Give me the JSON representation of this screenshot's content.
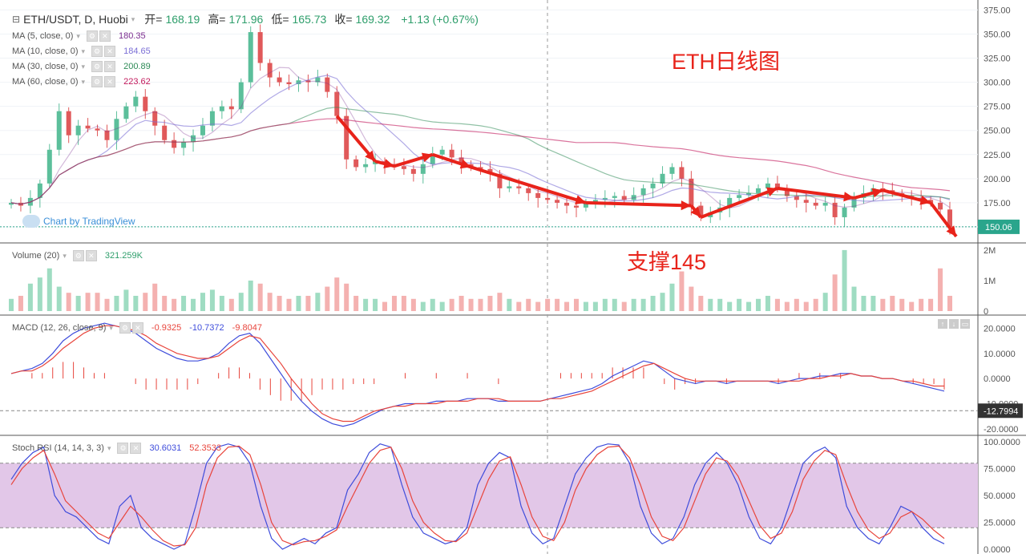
{
  "header": {
    "symbol": "ETH/USDT, D, Huobi",
    "open_label": "开=",
    "open": "168.19",
    "high_label": "高=",
    "high": "171.96",
    "low_label": "低=",
    "low": "165.73",
    "close_label": "收=",
    "close": "169.32",
    "change": "+1.13 (+0.67%)"
  },
  "ma_legend": [
    {
      "label": "MA (5, close, 0)",
      "value": "180.35",
      "color": "#7b2d8f"
    },
    {
      "label": "MA (10, close, 0)",
      "value": "184.65",
      "color": "#7b6fd6"
    },
    {
      "label": "MA (30, close, 0)",
      "value": "200.89",
      "color": "#2e8b57"
    },
    {
      "label": "MA (60, close, 0)",
      "value": "223.62",
      "color": "#c2185b"
    }
  ],
  "volume_legend": {
    "label": "Volume (20)",
    "value": "321.259K"
  },
  "macd_legend": {
    "label": "MACD (12, 26, close, 9)",
    "v1": "-0.9325",
    "v2": "-10.7372",
    "v3": "-9.8047"
  },
  "stoch_legend": {
    "label": "Stoch RSI (14, 14, 3, 3)",
    "v1": "30.6031",
    "v2": "52.3533"
  },
  "watermark": "Chart by TradingView",
  "annotations": {
    "title": "ETH日线图",
    "support": "支撑145"
  },
  "price_axis": {
    "ticks": [
      "375.00",
      "350.00",
      "325.00",
      "300.00",
      "275.00",
      "250.00",
      "225.00",
      "200.00",
      "175.00",
      "150.00"
    ],
    "last_price_tag": "150.06"
  },
  "volume_axis": {
    "ticks": [
      "2M",
      "1M",
      "0"
    ]
  },
  "macd_axis": {
    "ticks": [
      "20.0000",
      "10.0000",
      "0.0000",
      "-10.0000",
      "-20.0000"
    ],
    "tag": "-12.7994"
  },
  "stoch_axis": {
    "ticks": [
      "100.0000",
      "75.0000",
      "50.0000",
      "25.0000",
      "0.0000"
    ]
  },
  "colors": {
    "up": "#5cbf9b",
    "down": "#e0595a",
    "arrow": "#e8231a",
    "macd_line": "#3f4ddb",
    "signal_line": "#e8453c",
    "stoch_k": "#3f4ddb",
    "stoch_d": "#e8453c",
    "stoch_band": "#e2c7e8"
  },
  "chart_data": {
    "type": "candlestick",
    "closes": [
      175,
      172,
      180,
      195,
      230,
      270,
      245,
      255,
      252,
      250,
      240,
      262,
      275,
      285,
      270,
      255,
      240,
      232,
      238,
      245,
      255,
      270,
      275,
      272,
      300,
      352,
      320,
      305,
      300,
      298,
      302,
      300,
      305,
      290,
      265,
      220,
      212,
      215,
      218,
      215,
      213,
      210,
      205,
      215,
      225,
      230,
      222,
      215,
      212,
      210,
      205,
      190,
      192,
      190,
      185,
      180,
      178,
      175,
      172,
      170,
      175,
      178,
      180,
      182,
      178,
      183,
      190,
      195,
      205,
      212,
      200,
      172,
      160,
      165,
      170,
      180,
      183,
      185,
      190,
      195,
      190,
      182,
      178,
      175,
      172,
      175,
      160,
      170,
      180,
      185,
      190,
      188,
      185,
      182,
      180,
      178,
      175,
      168,
      150
    ],
    "volume_M": [
      0.4,
      0.5,
      0.9,
      1.1,
      1.4,
      0.8,
      0.6,
      0.5,
      0.6,
      0.6,
      0.4,
      0.5,
      0.7,
      0.5,
      0.6,
      0.9,
      0.5,
      0.4,
      0.5,
      0.4,
      0.6,
      0.7,
      0.5,
      0.4,
      0.6,
      1.0,
      0.9,
      0.6,
      0.5,
      0.4,
      0.5,
      0.5,
      0.6,
      0.8,
      1.1,
      0.9,
      0.5,
      0.4,
      0.4,
      0.3,
      0.5,
      0.5,
      0.4,
      0.3,
      0.4,
      0.3,
      0.4,
      0.5,
      0.4,
      0.4,
      0.5,
      0.6,
      0.4,
      0.3,
      0.4,
      0.3,
      0.4,
      0.4,
      0.3,
      0.4,
      0.3,
      0.3,
      0.4,
      0.4,
      0.3,
      0.4,
      0.4,
      0.5,
      0.6,
      0.9,
      1.3,
      0.8,
      0.5,
      0.4,
      0.4,
      0.3,
      0.4,
      0.3,
      0.4,
      0.5,
      0.4,
      0.3,
      0.4,
      0.3,
      0.4,
      0.6,
      1.2,
      2.0,
      0.8,
      0.5,
      0.5,
      0.4,
      0.5,
      0.4,
      0.3,
      0.4,
      0.4,
      1.4,
      0.5
    ],
    "macd": [
      2,
      3,
      4,
      6,
      10,
      15,
      18,
      20,
      21,
      22,
      21,
      20,
      18,
      15,
      12,
      10,
      8,
      7,
      7,
      8,
      10,
      14,
      17,
      18,
      14,
      8,
      2,
      -4,
      -9,
      -13,
      -16,
      -18,
      -19,
      -18,
      -16,
      -14,
      -12,
      -11,
      -10,
      -10,
      -10,
      -9,
      -9,
      -9,
      -8,
      -8,
      -8,
      -9,
      -9,
      -9,
      -9,
      -9,
      -8,
      -7,
      -6,
      -5,
      -4,
      -2,
      1,
      3,
      5,
      7,
      6,
      3,
      0,
      -1,
      -2,
      -1,
      -1,
      -2,
      -1,
      -1,
      -1,
      -1,
      -2,
      -1,
      0,
      0,
      1,
      1,
      2,
      2,
      1,
      1,
      0,
      0,
      -1,
      -2,
      -3,
      -4,
      -5
    ],
    "signal": [
      2,
      3,
      3,
      5,
      8,
      12,
      15,
      18,
      20,
      21,
      21,
      20,
      19,
      17,
      14,
      12,
      10,
      9,
      8,
      8,
      9,
      12,
      15,
      17,
      16,
      11,
      6,
      0,
      -5,
      -10,
      -14,
      -16,
      -17,
      -17,
      -15,
      -13,
      -12,
      -11,
      -11,
      -10,
      -10,
      -10,
      -9,
      -9,
      -9,
      -8,
      -8,
      -8,
      -9,
      -9,
      -9,
      -9,
      -8,
      -8,
      -7,
      -6,
      -5,
      -3,
      -1,
      1,
      3,
      5,
      6,
      4,
      2,
      0,
      -1,
      -1,
      -1,
      -1,
      -1,
      -1,
      -1,
      -1,
      -1,
      -1,
      -1,
      0,
      0,
      1,
      1,
      2,
      1,
      1,
      0,
      0,
      -1,
      -1,
      -2,
      -3,
      -3
    ],
    "stoch_k": [
      65,
      80,
      90,
      95,
      50,
      35,
      30,
      20,
      10,
      5,
      40,
      50,
      20,
      10,
      5,
      0,
      5,
      40,
      80,
      95,
      98,
      95,
      80,
      40,
      10,
      0,
      5,
      10,
      5,
      15,
      20,
      55,
      70,
      90,
      98,
      95,
      60,
      30,
      15,
      10,
      5,
      8,
      20,
      60,
      80,
      90,
      85,
      40,
      15,
      5,
      10,
      40,
      70,
      85,
      95,
      98,
      97,
      80,
      40,
      15,
      5,
      10,
      30,
      60,
      80,
      90,
      80,
      60,
      30,
      10,
      5,
      20,
      50,
      80,
      90,
      95,
      85,
      40,
      20,
      10,
      5,
      20,
      40,
      35,
      20,
      10,
      5
    ],
    "stoch_d": [
      60,
      75,
      85,
      92,
      70,
      45,
      35,
      25,
      15,
      10,
      25,
      40,
      30,
      18,
      8,
      3,
      4,
      20,
      60,
      85,
      95,
      96,
      88,
      60,
      25,
      8,
      4,
      7,
      8,
      12,
      18,
      40,
      60,
      80,
      92,
      95,
      75,
      45,
      25,
      15,
      8,
      7,
      15,
      40,
      65,
      82,
      86,
      60,
      30,
      12,
      8,
      25,
      55,
      75,
      88,
      95,
      96,
      85,
      60,
      30,
      12,
      8,
      20,
      45,
      70,
      85,
      82,
      68,
      45,
      22,
      10,
      15,
      35,
      65,
      82,
      92,
      88,
      60,
      35,
      18,
      10,
      15,
      30,
      35,
      28,
      18,
      10
    ]
  }
}
